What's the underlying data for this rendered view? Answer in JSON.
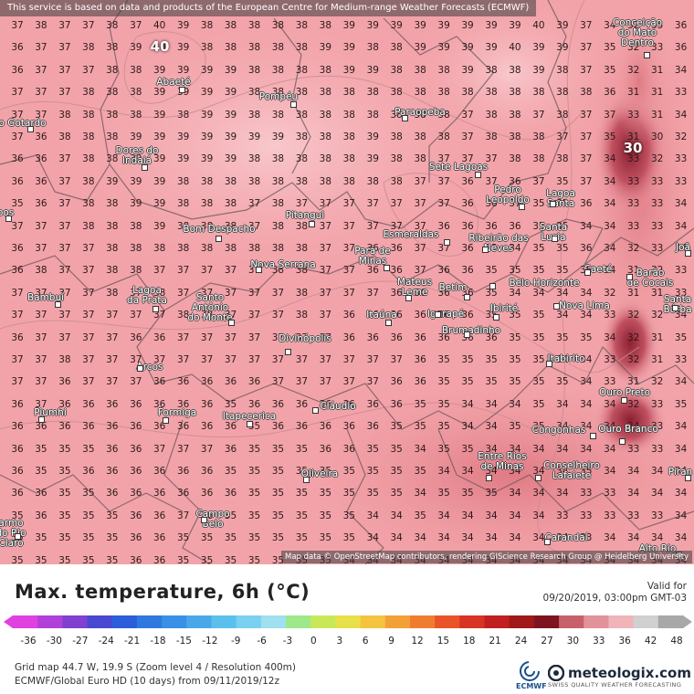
{
  "map": {
    "banner": "This service is based on data and products of the European Centre for Medium-range Weather Forecasts (ECMWF)",
    "attribution": "Map data © OpenStreetMap contributors, rendering GIScience Research Group @ Heidelberg University",
    "grid_columns": 29,
    "grid_values": [
      "37 38 37 37 38 37 40 39 38 38 38 38 38 38 39 39 39 39 39 39 39 39 40 39 37 34 32 35 36",
      "36 37 37 38 38 39 40 39 38 38 38 38 38 39 39 38 38 39 39 39 39 40 39 39 37 35 32 33 36",
      "36 37 37 37 38 38 39 39 39 39 38 38 38 38 39 39 38 38 38 39 38 38 39 38 37 35 32 31 34",
      "37 37 37 38 38 38 39 39 39 39 38 38 38 38 38 38 38 38 38 38 38 38 38 38 38 36 31 31 33",
      "37 37 38 38 38 38 39 38 39 39 38 38 38 38 38 38 38 38 38 37 38 38 37 38 37 37 33 31 34",
      "37 36 38 38 38 39 39 39 39 39 39 39 38 38 38 39 38 38 38 37 38 38 38 37 37 35 31 30 32",
      "36 36 37 38 38 39 39 39 39 39 38 38 38 38 38 39 38 38 37 37 37 38 38 38 37 34 33 32 33",
      "36 36 37 38 39 39 39 38 38 38 38 38 38 38 38 38 38 37 37 36 37 36 37 35 37 34 33 33 33",
      "35 36 37 38 38 39 39 38 38 38 37 38 37 37 37 37 37 37 37 36 36 37 35 35 36 34 33 33 34",
      "37 37 37 38 38 38 39 38 38 38 37 38 38 37 37 37 37 37 36 36 36 36 35 35 34 34 33 33 34",
      "36 37 37 37 38 38 38 38 38 38 38 38 38 37 37 36 36 37 37 36 35 34 35 35 36 34 32 33 34",
      "36 38 37 37 38 38 37 37 37 37 37 38 38 37 37 36 36 37 36 36 35 35 35 35 35 34 31 32 33",
      "37 37 37 37 38 37 38 37 37 37 37 37 38 37 37 37 36 36 36 36 35 34 34 34 34 32 31 31 33",
      "37 37 37 37 37 37 37 38 38 37 37 37 38 37 36 36 36 36 36 36 35 35 35 34 34 33 32 32 34",
      "36 37 37 37 37 36 36 37 37 37 37 37 37 37 36 36 36 36 36 36 36 35 35 35 35 34 32 31 35",
      "37 37 38 37 37 37 37 37 37 37 37 37 37 37 37 37 37 36 35 35 35 35 35 34 34 33 32 31 33",
      "37 37 36 37 37 37 36 36 36 36 36 37 37 37 37 37 36 36 35 35 35 35 35 35 34 33 31 32 34",
      "36 37 36 36 36 36 36 36 36 35 36 36 36 36 36 36 36 35 35 34 34 34 35 34 34 34 32 33 35",
      "36 36 36 36 36 36 36 36 36 36 35 36 36 36 36 36 35 35 35 34 34 35 35 34 34 34 34 33 34",
      "36 35 35 35 36 36 37 37 37 36 35 35 35 36 36 35 35 34 35 35 34 34 34 34 34 34 33 33 34",
      "36 35 35 36 36 36 36 36 36 35 35 35 35 35 35 35 35 35 34 34 34 34 34 34 35 34 34 34 34",
      "36 36 35 35 36 36 36 36 36 36 35 35 35 35 35 35 35 34 35 35 35 34 34 34 33 33 34 34 34",
      "35 36 35 35 35 36 36 37 36 35 35 35 35 35 35 34 34 35 34 34 34 34 34 33 33 33 33 33 34",
      "35 35 35 35 35 36 36 35 35 35 35 35 35 35 35 34 34 34 34 34 34 34 34 34 33 34 34 34 34",
      "35 35 35 35 35 36 36 35 35 35 35 35 35 35 34 34 34 34 34 34 34 34 34 34 34 34 34 34 34"
    ],
    "big_labels": [
      {
        "text": "40"
      },
      {
        "text": "30"
      }
    ],
    "places": [
      {
        "name": "Conceição\ndo Mato\nDentro"
      },
      {
        "name": "Abaeté"
      },
      {
        "name": "Pompéu"
      },
      {
        "name": "Paraopeba"
      },
      {
        "name": "São Gotardo"
      },
      {
        "name": "Dores do\nIndaiá"
      },
      {
        "name": "Sete Lagoas"
      },
      {
        "name": "Pedro\nLeopoldo"
      },
      {
        "name": "Lagoa\nSanta"
      },
      {
        "name": "Pitangui"
      },
      {
        "name": "Bom Despacho"
      },
      {
        "name": "Esmeraldas"
      },
      {
        "name": "Ribeirão das\nNeves"
      },
      {
        "name": "Santa\nLuzia"
      },
      {
        "name": "Pará de\nMinas"
      },
      {
        "name": "Nova Serrana"
      },
      {
        "name": "Caeté"
      },
      {
        "name": "Barão\nde Cocais"
      },
      {
        "name": "Mateus\nLeme"
      },
      {
        "name": "Betim"
      },
      {
        "name": "Belo Horizonte"
      },
      {
        "name": "Bambuí"
      },
      {
        "name": "Lagoa\nda Prata"
      },
      {
        "name": "Santo\nAntônio\ndo Monte"
      },
      {
        "name": "Itaúna"
      },
      {
        "name": "Igarapé"
      },
      {
        "name": "Ibirité"
      },
      {
        "name": "Nova Lima"
      },
      {
        "name": "Santa\nBárba"
      },
      {
        "name": "Divinópolis"
      },
      {
        "name": "Brumadinho"
      },
      {
        "name": "Arcos"
      },
      {
        "name": "Itabirito"
      },
      {
        "name": "Ouro Preto"
      },
      {
        "name": "Piumhi"
      },
      {
        "name": "Formiga"
      },
      {
        "name": "Itapecerica"
      },
      {
        "name": "Cláudio"
      },
      {
        "name": "Congonhas"
      },
      {
        "name": "Ouro Branco"
      },
      {
        "name": "Entre Rios\nde Minas"
      },
      {
        "name": "Conselheiro\nLafaiete"
      },
      {
        "name": "Oliveira"
      },
      {
        "name": "Campo\nBelo"
      },
      {
        "name": "Carandaí"
      },
      {
        "name": "Alto Rio"
      },
      {
        "name": "armo\ndo Rio\nClaro"
      },
      {
        "name": "Piran"
      },
      {
        "name": "Joã"
      },
      {
        "name": "pos"
      }
    ]
  },
  "legend": {
    "title": "Max. temperature, 6h (°C)",
    "valid_label": "Valid for",
    "valid_time": "09/20/2019, 03:00pm GMT-03",
    "ticks": [
      "-36",
      "-30",
      "-27",
      "-24",
      "-21",
      "-18",
      "-15",
      "-12",
      "-9",
      "-6",
      "-3",
      "0",
      "3",
      "6",
      "9",
      "12",
      "15",
      "18",
      "21",
      "24",
      "27",
      "30",
      "33",
      "36",
      "42",
      "48"
    ],
    "colors": [
      "#e040e0",
      "#b040d8",
      "#8040d0",
      "#4848d0",
      "#2b5ed8",
      "#2f78e0",
      "#3a90e6",
      "#4aa8ea",
      "#5cc0ec",
      "#7ad0f0",
      "#9ee0f0",
      "#9ee88a",
      "#c8e85a",
      "#e8e048",
      "#f4c440",
      "#f4a038",
      "#f07c30",
      "#e85428",
      "#d83424",
      "#c02020",
      "#a01818",
      "#7e1420",
      "#c8606c",
      "#e2929a",
      "#f0b4b8",
      "#d0d0d0",
      "#a8a8a8"
    ]
  },
  "footer": {
    "line1": "Grid map 44.7 W, 19.9 S (Zoom level 4 / Resolution 400m)",
    "line2": "ECMWF/Global Euro HD (10 days) from 09/11/2019/12z",
    "ecmwf_label": "ECMWF",
    "brand": "meteologix.com",
    "tagline": "SWISS QUALITY WEATHER FORECASTING"
  }
}
